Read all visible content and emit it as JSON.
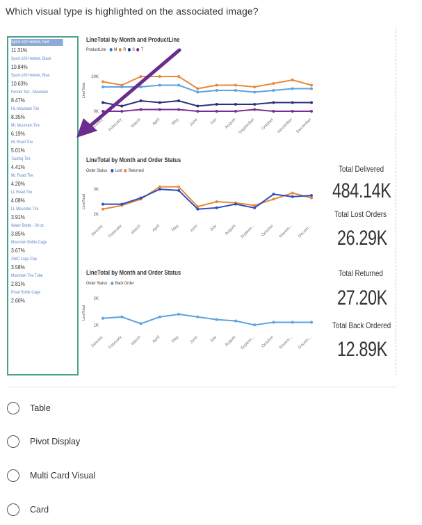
{
  "question": "Which visual type is highlighted on the associated image?",
  "multicard": {
    "items": [
      {
        "label": "Sport-100 Helmet, Red",
        "value": "11.31%"
      },
      {
        "label": "Sport-100 Helmet, Black",
        "value": "10.84%"
      },
      {
        "label": "Sport-100 Helmet, Blue",
        "value": "10.63%"
      },
      {
        "label": "Fender Set - Mountain",
        "value": "8.47%"
      },
      {
        "label": "HL Mountain Tire",
        "value": "8.35%"
      },
      {
        "label": "ML Mountain Tire",
        "value": "6.19%"
      },
      {
        "label": "HL Road Tire",
        "value": "5.01%"
      },
      {
        "label": "Touring Tire",
        "value": "4.41%"
      },
      {
        "label": "ML Road Tire",
        "value": "4.20%"
      },
      {
        "label": "LL Road Tire",
        "value": "4.08%"
      },
      {
        "label": "LL Mountain Tire",
        "value": "3.91%"
      },
      {
        "label": "Water Bottle - 30 oz.",
        "value": "3.85%"
      },
      {
        "label": "Mountain Bottle Cage",
        "value": "3.67%"
      },
      {
        "label": "AWC Logo Cap",
        "value": "3.58%"
      },
      {
        "label": "Mountain Tire Tube",
        "value": "2.81%"
      },
      {
        "label": "Road Bottle Cage",
        "value": "2.60%"
      }
    ]
  },
  "months": [
    "January",
    "February",
    "March",
    "April",
    "May",
    "June",
    "July",
    "August",
    "September",
    "October",
    "November",
    "December"
  ],
  "months_short": [
    "January",
    "February",
    "March",
    "April",
    "May",
    "June",
    "July",
    "August",
    "Septem...",
    "October",
    "Novem...",
    "Decem..."
  ],
  "chart1": {
    "title": "LineTotal by Month and ProductLine",
    "legend_label": "ProductLine",
    "legend_items": [
      {
        "name": "M",
        "color": "#3b6fc4"
      },
      {
        "name": "R",
        "color": "#e8883a"
      },
      {
        "name": "S",
        "color": "#2b2f7a"
      },
      {
        "name": "T",
        "color": "#7b2d8e"
      }
    ],
    "y_ticks": [
      "20K",
      "0K"
    ],
    "y_axis_title": "LineTotal",
    "series": [
      {
        "color": "#e8883a",
        "values": [
          17,
          15,
          20,
          20,
          20,
          13,
          15,
          15,
          14,
          16,
          18,
          15
        ]
      },
      {
        "color": "#5aa3e3",
        "values": [
          14,
          14,
          14,
          15,
          15,
          11,
          12,
          12,
          11,
          12,
          13,
          13
        ]
      },
      {
        "color": "#2b2f7a",
        "values": [
          5,
          3,
          6,
          5,
          6,
          3,
          4,
          4,
          4,
          5,
          5,
          5
        ]
      },
      {
        "color": "#7b2d8e",
        "values": [
          0,
          0,
          1,
          1,
          1,
          0,
          0,
          0,
          1,
          0,
          0,
          0
        ]
      }
    ]
  },
  "chart2": {
    "title": "LineTotal by Month and Order Status",
    "legend_label": "Order Status",
    "legend_items": [
      {
        "name": "Lost",
        "color": "#2b4fbf"
      },
      {
        "name": "Returned",
        "color": "#e8883a"
      }
    ],
    "y_ticks": [
      "3K",
      "2K"
    ],
    "y_axis_title": "LineTotal",
    "series": [
      {
        "color": "#e8883a",
        "values": [
          2.2,
          2.35,
          2.6,
          3.1,
          3.1,
          2.3,
          2.5,
          2.45,
          2.35,
          2.6,
          2.85,
          2.65
        ]
      },
      {
        "color": "#2b4fbf",
        "values": [
          2.4,
          2.4,
          2.65,
          3.0,
          2.95,
          2.2,
          2.25,
          2.4,
          2.25,
          2.8,
          2.7,
          2.75
        ]
      }
    ]
  },
  "chart3": {
    "title": "LineTotal by Month and Order Status",
    "legend_label": "Order Status",
    "legend_items": [
      {
        "name": "Back Order",
        "color": "#5aa3e3"
      }
    ],
    "y_ticks": [
      "2K",
      "1K"
    ],
    "y_axis_title": "LineTotal",
    "series": [
      {
        "color": "#5aa3e3",
        "values": [
          1.25,
          1.3,
          1.05,
          1.3,
          1.4,
          1.3,
          1.2,
          1.15,
          1.0,
          1.1,
          1.1,
          1.1
        ]
      }
    ]
  },
  "kpis": [
    {
      "label": "Total Delivered",
      "value": "484.14K"
    },
    {
      "label": "Total Lost Orders",
      "value": "26.29K"
    },
    {
      "label": "Total Returned",
      "value": "27.20K"
    },
    {
      "label": "Total Back Ordered",
      "value": "12.89K"
    }
  ],
  "arrow": {
    "color": "#6a2c8e"
  },
  "options": [
    {
      "label": "Table"
    },
    {
      "label": "Pivot Display"
    },
    {
      "label": "Multi Card Visual"
    },
    {
      "label": "Card"
    }
  ]
}
